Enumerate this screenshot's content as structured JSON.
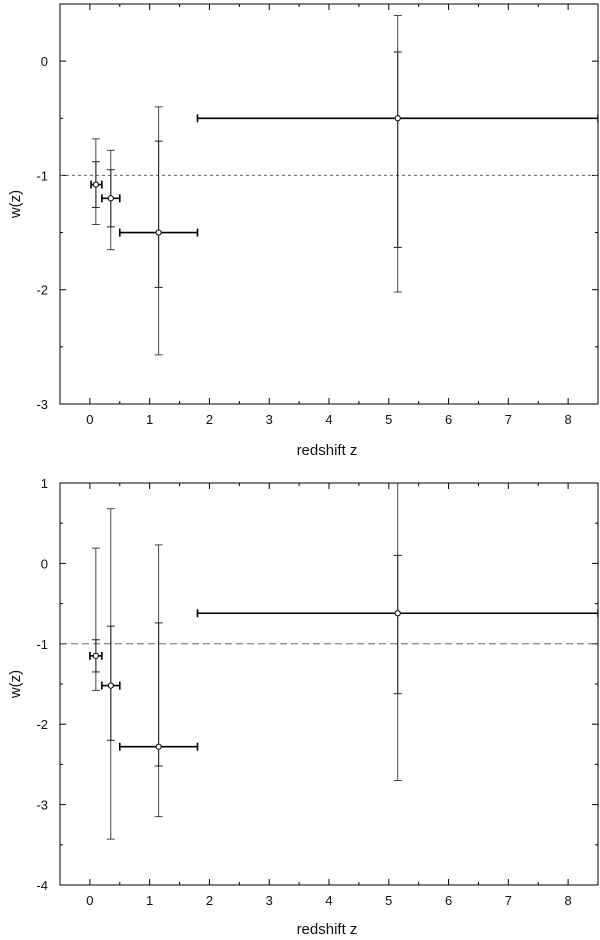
{
  "chart_data": [
    {
      "type": "scatter",
      "xlabel": "redshift z",
      "ylabel": "w(z)",
      "xlim": [
        -0.5,
        8.5
      ],
      "ylim": [
        -3,
        0.5
      ],
      "x_ticks": [
        0,
        1,
        2,
        3,
        4,
        5,
        6,
        7,
        8
      ],
      "y_ticks": [
        -3,
        -2,
        -1,
        0
      ],
      "grid": false,
      "reference_line": {
        "y": -1,
        "style": "dashed"
      },
      "points": [
        {
          "x": 0.1,
          "y": -1.08,
          "x_err": [
            0.02,
            0.2
          ],
          "y_err_inner": [
            -1.28,
            -0.88
          ],
          "y_err_outer": [
            -1.43,
            -0.68
          ]
        },
        {
          "x": 0.35,
          "y": -1.2,
          "x_err": [
            0.2,
            0.5
          ],
          "y_err_inner": [
            -1.45,
            -0.95
          ],
          "y_err_outer": [
            -1.65,
            -0.78
          ]
        },
        {
          "x": 1.15,
          "y": -1.5,
          "x_err": [
            0.5,
            1.8
          ],
          "y_err_inner": [
            -1.98,
            -0.7
          ],
          "y_err_outer": [
            -2.57,
            -0.4
          ]
        },
        {
          "x": 5.15,
          "y": -0.5,
          "x_err": [
            1.8,
            8.5
          ],
          "y_err_inner": [
            -1.63,
            0.08
          ],
          "y_err_outer": [
            -2.02,
            0.4
          ]
        }
      ]
    },
    {
      "type": "scatter",
      "xlabel": "redshift z",
      "ylabel": "w(z)",
      "xlim": [
        -0.5,
        8.5
      ],
      "ylim": [
        -4,
        1
      ],
      "x_ticks": [
        0,
        1,
        2,
        3,
        4,
        5,
        6,
        7,
        8
      ],
      "y_ticks": [
        -4,
        -3,
        -2,
        -1,
        0,
        1
      ],
      "grid": false,
      "reference_line": {
        "y": -1,
        "style": "dashed"
      },
      "points": [
        {
          "x": 0.1,
          "y": -1.15,
          "x_err": [
            0.0,
            0.2
          ],
          "y_err_inner": [
            -1.35,
            -0.95
          ],
          "y_err_outer": [
            -1.58,
            0.19
          ]
        },
        {
          "x": 0.35,
          "y": -1.52,
          "x_err": [
            0.2,
            0.5
          ],
          "y_err_inner": [
            -2.2,
            -0.78
          ],
          "y_err_outer": [
            -3.43,
            0.68
          ]
        },
        {
          "x": 1.15,
          "y": -2.28,
          "x_err": [
            0.5,
            1.8
          ],
          "y_err_inner": [
            -2.52,
            -0.74
          ],
          "y_err_outer": [
            -3.15,
            0.23
          ]
        },
        {
          "x": 5.15,
          "y": -0.62,
          "x_err": [
            1.8,
            8.5
          ],
          "y_err_inner": [
            -1.62,
            0.1
          ],
          "y_err_outer": [
            -2.7,
            1.0
          ]
        }
      ]
    }
  ]
}
